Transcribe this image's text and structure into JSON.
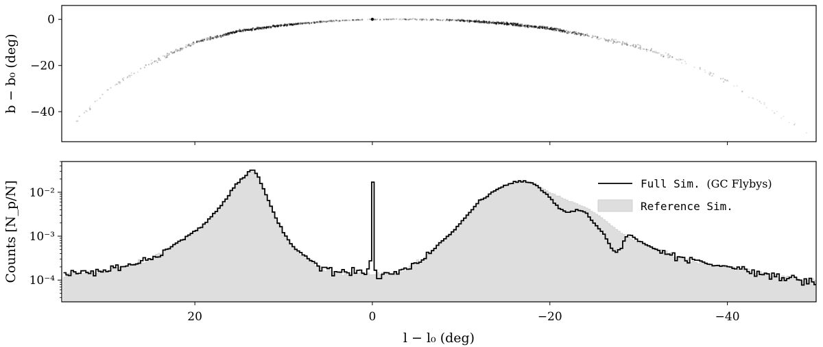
{
  "chart_data": [
    {
      "type": "scatter",
      "panel": "top",
      "xlabel": "",
      "ylabel": "b − b₀ (deg)",
      "xlim": [
        35,
        -50
      ],
      "ylim": [
        -53,
        6
      ],
      "yticks": [
        0,
        -20,
        -40
      ],
      "ytick_labels": [
        "0",
        "−20",
        "−40"
      ],
      "xticks": [
        20,
        0,
        -20,
        -40
      ],
      "xtick_labels": [
        "",
        "",
        "",
        ""
      ],
      "stream_arc": {
        "description_points_l": [
          34,
          30,
          25,
          20,
          15,
          10,
          5,
          0,
          -5,
          -10,
          -15,
          -20,
          -25,
          -30,
          -35,
          -40,
          -45,
          -49
        ],
        "description_points_b": [
          -47,
          -31,
          -19,
          -10,
          -5,
          -2.5,
          -0.8,
          0,
          0,
          -0.5,
          -1.8,
          -4,
          -7.5,
          -12,
          -18,
          -27,
          -39,
          -49
        ],
        "density": [
          0.05,
          0.1,
          0.2,
          0.45,
          0.9,
          0.85,
          0.35,
          0.2,
          0.25,
          0.6,
          0.9,
          0.8,
          0.35,
          0.25,
          0.15,
          0.1,
          0.06,
          0.04
        ],
        "progenitor": [
          0,
          0
        ]
      },
      "color": "#000000"
    },
    {
      "type": "histogram",
      "panel": "bottom",
      "xlabel": "l − l₀ (deg)",
      "ylabel": "Counts [N_p/N]",
      "yscale": "log",
      "xlim": [
        35,
        -50
      ],
      "ylim": [
        3.2e-05,
        0.05
      ],
      "xticks": [
        20,
        0,
        -20,
        -40
      ],
      "xtick_labels": [
        "20",
        "0",
        "−20",
        "−40"
      ],
      "ytick_values": [
        0.0001,
        0.001,
        0.01
      ],
      "ytick_labels": [
        "10⁻⁴",
        "10⁻³",
        "10⁻²"
      ],
      "legend_position": "top-right",
      "series": [
        {
          "name": "Full Sim.",
          "name_suffix": "(GC Flybys)",
          "style": "step-line",
          "color": "#000000",
          "x": [
            35,
            30,
            25,
            22,
            19,
            17,
            15.5,
            14,
            13.5,
            13,
            12,
            11,
            10,
            9,
            8,
            6,
            4,
            2,
            1,
            0.5,
            0.2,
            0,
            -0.2,
            -0.5,
            -1,
            -2,
            -4,
            -6,
            -8,
            -10,
            -12,
            -14,
            -16,
            -17,
            -18,
            -19,
            -20,
            -21,
            -22,
            -23,
            -24,
            -25,
            -26,
            -27,
            -27.5,
            -28,
            -28.5,
            -29,
            -30,
            -32,
            -34,
            -37,
            -40,
            -43,
            -46,
            -50
          ],
          "values": [
            0.00013,
            0.00016,
            0.0003,
            0.0007,
            0.0018,
            0.005,
            0.014,
            0.028,
            0.032,
            0.026,
            0.009,
            0.003,
            0.0012,
            0.0006,
            0.0004,
            0.0002,
            0.00015,
            0.00015,
            0.00016,
            0.00018,
            0.0003,
            0.017,
            0.0003,
            0.00012,
            0.00012,
            0.00014,
            0.00018,
            0.00035,
            0.0008,
            0.002,
            0.006,
            0.012,
            0.017,
            0.018,
            0.016,
            0.012,
            0.0075,
            0.0045,
            0.0033,
            0.004,
            0.0035,
            0.002,
            0.0012,
            0.0005,
            0.0004,
            0.0005,
            0.0009,
            0.0011,
            0.0008,
            0.0005,
            0.00035,
            0.00025,
            0.0002,
            0.00015,
            0.00012,
            8e-05
          ]
        },
        {
          "name": "Reference Sim.",
          "style": "filled-step",
          "color": "#dedede",
          "x": [
            35,
            30,
            25,
            22,
            19,
            17,
            15.5,
            14,
            13.5,
            13,
            12,
            11,
            10,
            9,
            8,
            6,
            4,
            2,
            0,
            -2,
            -4,
            -6,
            -8,
            -10,
            -12,
            -14,
            -16,
            -17,
            -18,
            -19,
            -20,
            -21,
            -22,
            -23,
            -24,
            -25,
            -26,
            -27,
            -28,
            -29,
            -30,
            -32,
            -34,
            -37,
            -40,
            -43,
            -46,
            -50
          ],
          "values": [
            0.00013,
            0.00016,
            0.0003,
            0.0007,
            0.0018,
            0.005,
            0.014,
            0.027,
            0.03,
            0.025,
            0.009,
            0.003,
            0.0012,
            0.0006,
            0.0004,
            0.0002,
            0.00015,
            0.00014,
            0.00015,
            0.00014,
            0.00018,
            0.00035,
            0.0008,
            0.002,
            0.006,
            0.012,
            0.017,
            0.0175,
            0.016,
            0.013,
            0.01,
            0.008,
            0.0065,
            0.0055,
            0.0045,
            0.0035,
            0.0025,
            0.0017,
            0.0012,
            0.0009,
            0.0007,
            0.0005,
            0.00035,
            0.00025,
            0.0002,
            0.00015,
            0.00012,
            0.0001
          ]
        }
      ]
    }
  ]
}
